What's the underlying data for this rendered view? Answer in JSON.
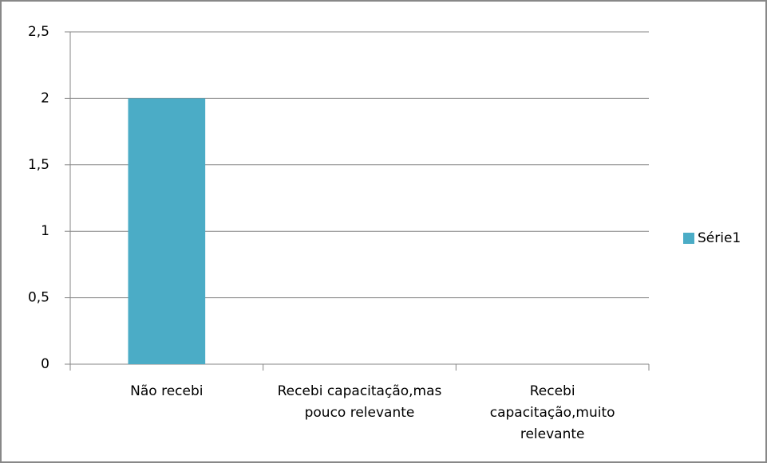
{
  "chart_data": {
    "type": "bar",
    "categories": [
      "Não recebi",
      "Recebi capacitação,mas pouco relevante",
      "Recebi capacitação,muito relevante"
    ],
    "series": [
      {
        "name": "Série1",
        "color": "#4bacc6",
        "values": [
          2,
          0,
          0
        ]
      }
    ],
    "ylim": [
      0,
      2.5
    ],
    "yticks": [
      0,
      {
        "value": 0.5,
        "label": "0,5"
      },
      1,
      {
        "value": 1.5,
        "label": "1,5"
      },
      2,
      {
        "value": 2.5,
        "label": "2,5"
      }
    ],
    "grid": true,
    "legend": "right"
  }
}
